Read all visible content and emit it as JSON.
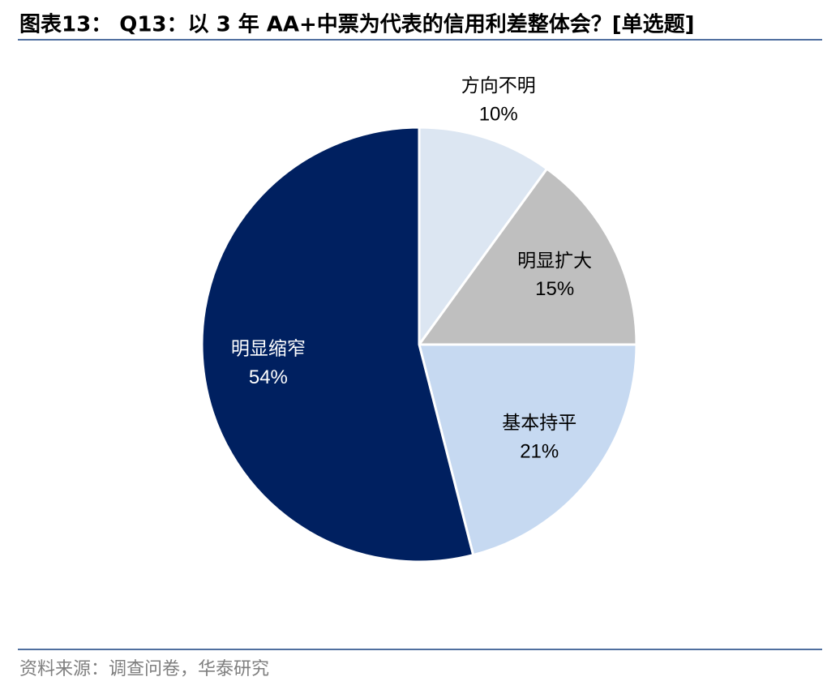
{
  "chart_data": {
    "type": "pie",
    "title": "图表13： Q13：以 3 年 AA+中票为代表的信用利差整体会？[单选题]",
    "categories": [
      "方向不明",
      "明显扩大",
      "基本持平",
      "明显缩窄"
    ],
    "values": [
      10,
      15,
      21,
      54
    ],
    "value_labels": [
      "10%",
      "15%",
      "21%",
      "54%"
    ],
    "colors": [
      "#dce6f2",
      "#bfbfbf",
      "#c6d9f1",
      "#002060"
    ],
    "source": "资料来源：调查问卷，华泰研究"
  }
}
